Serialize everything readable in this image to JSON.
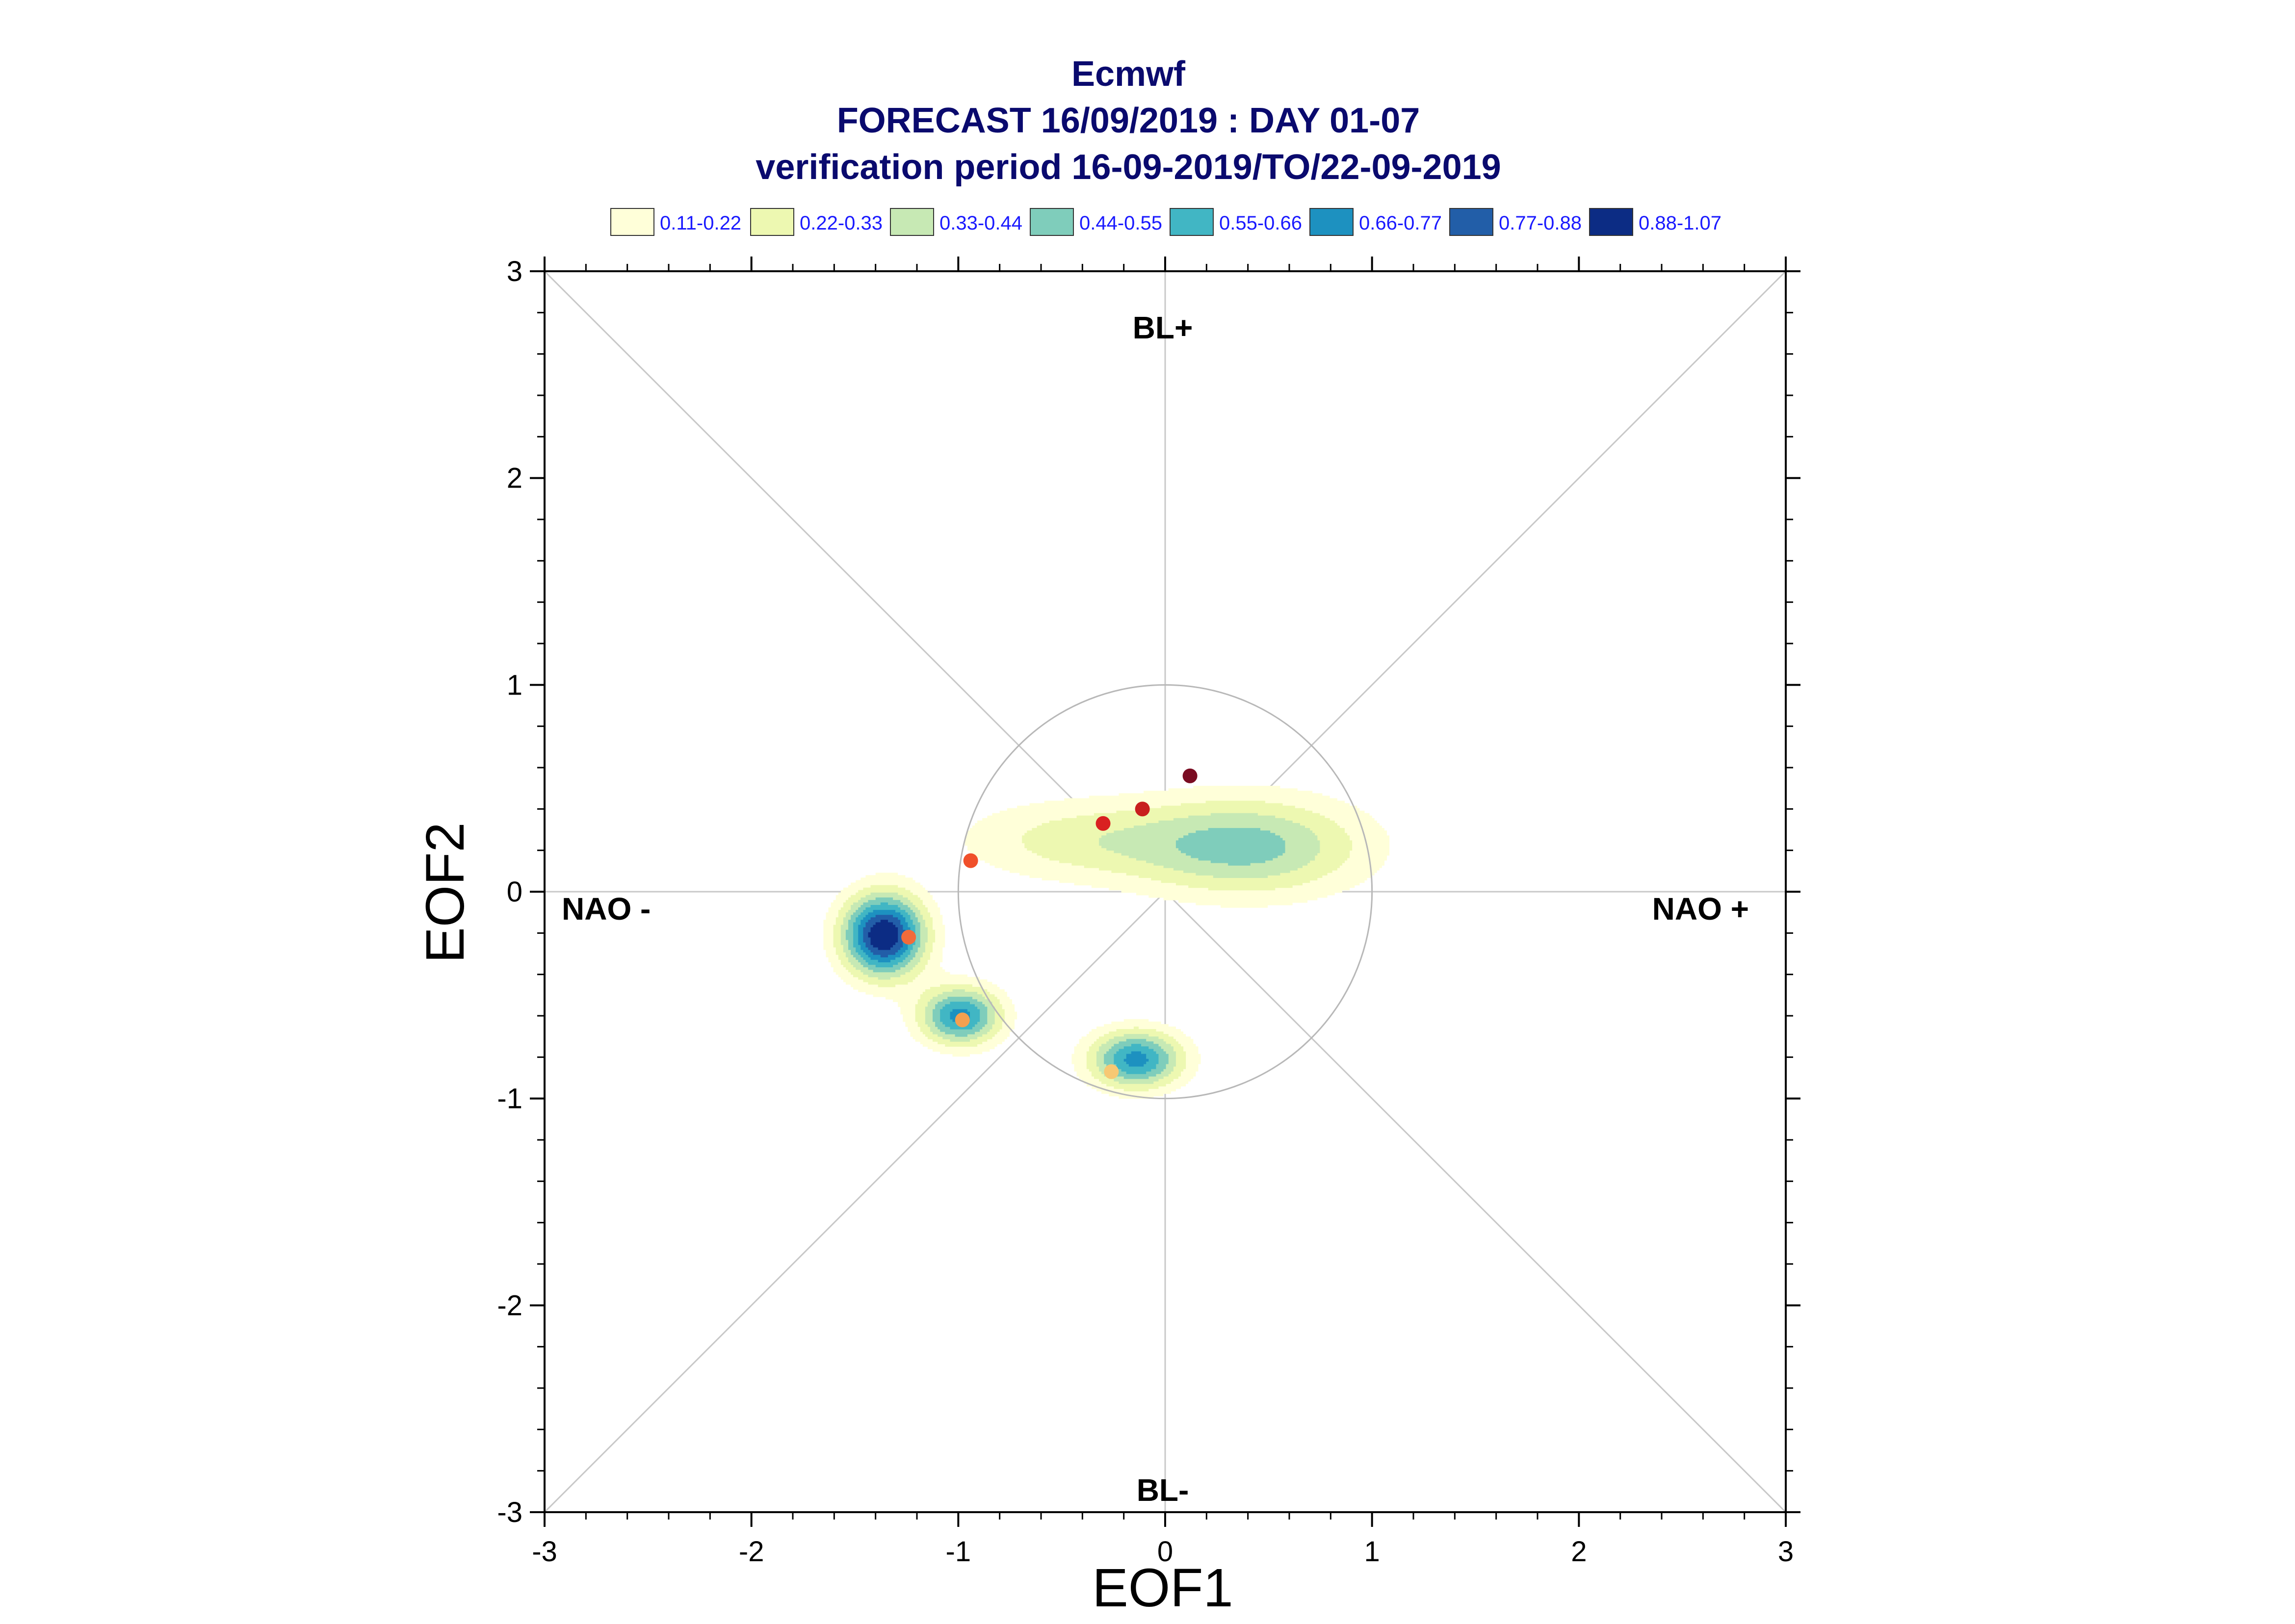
{
  "chart_data": {
    "type": "contour",
    "title": [
      "Ecmwf",
      "FORECAST 16/09/2019 : DAY 01-07",
      "verification period 16-09-2019/TO/22-09-2019"
    ],
    "xlabel": "EOF1",
    "ylabel": "EOF2",
    "xlim": [
      -3,
      3
    ],
    "ylim": [
      -3,
      3
    ],
    "xticks": [
      "-3",
      "-2",
      "-1",
      "0",
      "1",
      "2",
      "3"
    ],
    "yticks": [
      "-3",
      "-2",
      "-1",
      "0",
      "1",
      "2",
      "3"
    ],
    "region_labels": {
      "top": "BL+",
      "bottom": "BL-",
      "left": "NAO -",
      "right": "NAO +"
    },
    "legend": [
      {
        "label": "0.11-0.22",
        "color": "#ffffd9"
      },
      {
        "label": "0.22-0.33",
        "color": "#edf8b1"
      },
      {
        "label": "0.33-0.44",
        "color": "#c7e9b4"
      },
      {
        "label": "0.44-0.55",
        "color": "#7fcdbb"
      },
      {
        "label": "0.55-0.66",
        "color": "#41b6c4"
      },
      {
        "label": "0.66-0.77",
        "color": "#1d91c0"
      },
      {
        "label": "0.77-0.88",
        "color": "#225ea8"
      },
      {
        "label": "0.88-1.07",
        "color": "#0c2c84"
      }
    ],
    "unit_circle_radius": 1,
    "daily_points": [
      {
        "x": 0.12,
        "y": 0.56,
        "color": "#7a0c22"
      },
      {
        "x": -0.11,
        "y": 0.4,
        "color": "#c81e1e"
      },
      {
        "x": -0.3,
        "y": 0.33,
        "color": "#d92121"
      },
      {
        "x": -0.94,
        "y": 0.15,
        "color": "#f0502a"
      },
      {
        "x": -1.24,
        "y": -0.22,
        "color": "#f26b3a"
      },
      {
        "x": -0.98,
        "y": -0.62,
        "color": "#f5a050"
      },
      {
        "x": -0.26,
        "y": -0.87,
        "color": "#f7c873"
      }
    ],
    "density_centers": [
      {
        "x": -1.36,
        "y": -0.21,
        "amp": 1.0,
        "sx": 0.14,
        "sy": 0.14
      },
      {
        "x": -0.99,
        "y": -0.6,
        "amp": 0.7,
        "sx": 0.14,
        "sy": 0.1
      },
      {
        "x": -0.14,
        "y": -0.81,
        "amp": 0.7,
        "sx": 0.16,
        "sy": 0.1
      },
      {
        "x": 0.4,
        "y": 0.22,
        "amp": 0.48,
        "sx": 0.4,
        "sy": 0.17
      },
      {
        "x": -0.45,
        "y": 0.25,
        "amp": 0.25,
        "sx": 0.4,
        "sy": 0.14
      }
    ]
  }
}
